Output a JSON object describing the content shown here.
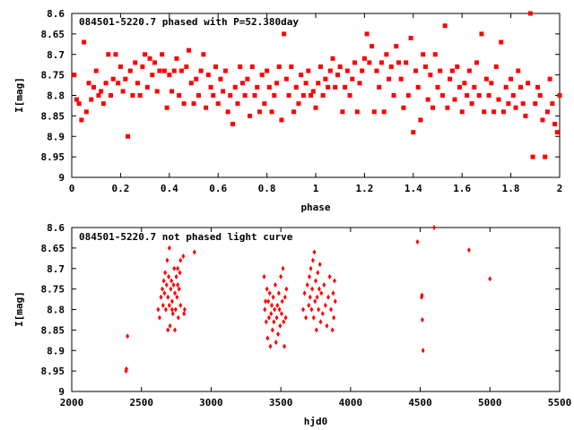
{
  "chart_data": [
    {
      "type": "scatter",
      "title": "084501-5220.7 phased with P=52.380day",
      "xlabel": "phase",
      "ylabel": "I[mag]",
      "xlim": [
        0,
        2
      ],
      "ylim": [
        8.6,
        9
      ],
      "y_inverted": true,
      "xticks": [
        0,
        0.2,
        0.4,
        0.6,
        0.8,
        1,
        1.2,
        1.4,
        1.6,
        1.8,
        2
      ],
      "xtick_labels": [
        "0",
        "0.2",
        "0.4",
        "0.6",
        "0.8",
        "1",
        "1.2",
        "1.4",
        "1.6",
        "1.8",
        "2"
      ],
      "yticks": [
        8.6,
        8.65,
        8.7,
        8.75,
        8.8,
        8.85,
        8.9,
        8.95,
        9
      ],
      "ytick_labels": [
        "8.6",
        "8.65",
        "8.7",
        "8.75",
        "8.8",
        "8.85",
        "8.9",
        "8.95",
        "9"
      ],
      "marker_color": "#ff0000",
      "points": [
        [
          0.01,
          8.75
        ],
        [
          0.02,
          8.81
        ],
        [
          0.03,
          8.82
        ],
        [
          0.04,
          8.86
        ],
        [
          0.05,
          8.67
        ],
        [
          0.06,
          8.84
        ],
        [
          0.07,
          8.77
        ],
        [
          0.08,
          8.81
        ],
        [
          0.09,
          8.78
        ],
        [
          0.1,
          8.74
        ],
        [
          0.11,
          8.8
        ],
        [
          0.12,
          8.79
        ],
        [
          0.13,
          8.82
        ],
        [
          0.14,
          8.77
        ],
        [
          0.15,
          8.7
        ],
        [
          0.16,
          8.8
        ],
        [
          0.17,
          8.76
        ],
        [
          0.18,
          8.7
        ],
        [
          0.19,
          8.77
        ],
        [
          0.2,
          8.73
        ],
        [
          0.21,
          8.79
        ],
        [
          0.22,
          8.76
        ],
        [
          0.23,
          8.9
        ],
        [
          0.24,
          8.74
        ],
        [
          0.25,
          8.8
        ],
        [
          0.26,
          8.72
        ],
        [
          0.27,
          8.77
        ],
        [
          0.28,
          8.8
        ],
        [
          0.29,
          8.73
        ],
        [
          0.3,
          8.7
        ],
        [
          0.31,
          8.78
        ],
        [
          0.32,
          8.71
        ],
        [
          0.33,
          8.75
        ],
        [
          0.34,
          8.72
        ],
        [
          0.35,
          8.79
        ],
        [
          0.36,
          8.74
        ],
        [
          0.37,
          8.7
        ],
        [
          0.38,
          8.74
        ],
        [
          0.39,
          8.83
        ],
        [
          0.4,
          8.75
        ],
        [
          0.41,
          8.79
        ],
        [
          0.42,
          8.74
        ],
        [
          0.43,
          8.71
        ],
        [
          0.44,
          8.8
        ],
        [
          0.45,
          8.74
        ],
        [
          0.46,
          8.82
        ],
        [
          0.47,
          8.73
        ],
        [
          0.48,
          8.69
        ],
        [
          0.49,
          8.77
        ],
        [
          0.5,
          8.82
        ],
        [
          0.51,
          8.76
        ],
        [
          0.52,
          8.8
        ],
        [
          0.53,
          8.74
        ],
        [
          0.54,
          8.7
        ],
        [
          0.55,
          8.83
        ],
        [
          0.56,
          8.75
        ],
        [
          0.57,
          8.78
        ],
        [
          0.58,
          8.8
        ],
        [
          0.59,
          8.73
        ],
        [
          0.6,
          8.82
        ],
        [
          0.61,
          8.76
        ],
        [
          0.62,
          8.79
        ],
        [
          0.63,
          8.74
        ],
        [
          0.64,
          8.84
        ],
        [
          0.65,
          8.8
        ],
        [
          0.66,
          8.87
        ],
        [
          0.67,
          8.78
        ],
        [
          0.68,
          8.82
        ],
        [
          0.69,
          8.73
        ],
        [
          0.7,
          8.77
        ],
        [
          0.71,
          8.8
        ],
        [
          0.72,
          8.76
        ],
        [
          0.73,
          8.85
        ],
        [
          0.74,
          8.73
        ],
        [
          0.75,
          8.8
        ],
        [
          0.76,
          8.78
        ],
        [
          0.77,
          8.84
        ],
        [
          0.78,
          8.75
        ],
        [
          0.79,
          8.82
        ],
        [
          0.8,
          8.74
        ],
        [
          0.81,
          8.78
        ],
        [
          0.82,
          8.84
        ],
        [
          0.83,
          8.8
        ],
        [
          0.84,
          8.77
        ],
        [
          0.85,
          8.73
        ],
        [
          0.86,
          8.86
        ],
        [
          0.87,
          8.65
        ],
        [
          0.88,
          8.76
        ],
        [
          0.89,
          8.8
        ],
        [
          0.9,
          8.73
        ],
        [
          0.91,
          8.84
        ],
        [
          0.92,
          8.78
        ],
        [
          0.93,
          8.82
        ],
        [
          0.94,
          8.75
        ],
        [
          0.95,
          8.8
        ],
        [
          0.96,
          8.77
        ],
        [
          0.97,
          8.74
        ],
        [
          0.98,
          8.8
        ],
        [
          0.99,
          8.79
        ],
        [
          1.0,
          8.83
        ],
        [
          1.01,
          8.77
        ],
        [
          1.02,
          8.73
        ],
        [
          1.03,
          8.8
        ],
        [
          1.04,
          8.76
        ],
        [
          1.05,
          8.78
        ],
        [
          1.06,
          8.74
        ],
        [
          1.07,
          8.71
        ],
        [
          1.08,
          8.78
        ],
        [
          1.09,
          8.75
        ],
        [
          1.1,
          8.73
        ],
        [
          1.11,
          8.84
        ],
        [
          1.12,
          8.78
        ],
        [
          1.13,
          8.74
        ],
        [
          1.14,
          8.8
        ],
        [
          1.15,
          8.76
        ],
        [
          1.16,
          8.72
        ],
        [
          1.17,
          8.84
        ],
        [
          1.18,
          8.77
        ],
        [
          1.19,
          8.74
        ],
        [
          1.2,
          8.71
        ],
        [
          1.21,
          8.65
        ],
        [
          1.22,
          8.72
        ],
        [
          1.23,
          8.68
        ],
        [
          1.24,
          8.84
        ],
        [
          1.25,
          8.74
        ],
        [
          1.26,
          8.78
        ],
        [
          1.27,
          8.72
        ],
        [
          1.28,
          8.84
        ],
        [
          1.29,
          8.7
        ],
        [
          1.3,
          8.76
        ],
        [
          1.31,
          8.73
        ],
        [
          1.32,
          8.8
        ],
        [
          1.33,
          8.68
        ],
        [
          1.34,
          8.72
        ],
        [
          1.35,
          8.76
        ],
        [
          1.36,
          8.83
        ],
        [
          1.37,
          8.72
        ],
        [
          1.38,
          8.8
        ],
        [
          1.39,
          8.66
        ],
        [
          1.4,
          8.89
        ],
        [
          1.41,
          8.74
        ],
        [
          1.42,
          8.78
        ],
        [
          1.43,
          8.86
        ],
        [
          1.44,
          8.7
        ],
        [
          1.45,
          8.73
        ],
        [
          1.46,
          8.81
        ],
        [
          1.47,
          8.75
        ],
        [
          1.48,
          8.83
        ],
        [
          1.49,
          8.7
        ],
        [
          1.5,
          8.78
        ],
        [
          1.51,
          8.74
        ],
        [
          1.52,
          8.8
        ],
        [
          1.53,
          8.63
        ],
        [
          1.54,
          8.83
        ],
        [
          1.55,
          8.76
        ],
        [
          1.56,
          8.74
        ],
        [
          1.57,
          8.81
        ],
        [
          1.58,
          8.73
        ],
        [
          1.59,
          8.78
        ],
        [
          1.6,
          8.84
        ],
        [
          1.61,
          8.77
        ],
        [
          1.62,
          8.8
        ],
        [
          1.63,
          8.74
        ],
        [
          1.64,
          8.82
        ],
        [
          1.65,
          8.78
        ],
        [
          1.66,
          8.72
        ],
        [
          1.67,
          8.8
        ],
        [
          1.68,
          8.65
        ],
        [
          1.69,
          8.84
        ],
        [
          1.7,
          8.76
        ],
        [
          1.71,
          8.8
        ],
        [
          1.72,
          8.77
        ],
        [
          1.73,
          8.84
        ],
        [
          1.74,
          8.73
        ],
        [
          1.75,
          8.81
        ],
        [
          1.76,
          8.67
        ],
        [
          1.77,
          8.84
        ],
        [
          1.78,
          8.78
        ],
        [
          1.79,
          8.82
        ],
        [
          1.8,
          8.76
        ],
        [
          1.81,
          8.8
        ],
        [
          1.82,
          8.83
        ],
        [
          1.83,
          8.74
        ],
        [
          1.84,
          8.78
        ],
        [
          1.85,
          8.82
        ],
        [
          1.86,
          8.85
        ],
        [
          1.87,
          8.77
        ],
        [
          1.88,
          8.6
        ],
        [
          1.89,
          8.95
        ],
        [
          1.9,
          8.82
        ],
        [
          1.91,
          8.78
        ],
        [
          1.92,
          8.8
        ],
        [
          1.93,
          8.86
        ],
        [
          1.94,
          8.95
        ],
        [
          1.95,
          8.84
        ],
        [
          1.96,
          8.76
        ],
        [
          1.97,
          8.82
        ],
        [
          1.98,
          8.87
        ],
        [
          1.99,
          8.89
        ],
        [
          2.0,
          8.8
        ]
      ]
    },
    {
      "type": "scatter",
      "title": "084501-5220.7 not phased light curve",
      "xlabel": "hjd0",
      "ylabel": "I[mag]",
      "xlim": [
        2000,
        5500
      ],
      "ylim": [
        8.6,
        9
      ],
      "y_inverted": true,
      "xticks": [
        2000,
        2500,
        3000,
        3500,
        4000,
        4500,
        5000,
        5500
      ],
      "xtick_labels": [
        "2000",
        "2500",
        "3000",
        "3500",
        "4000",
        "4500",
        "5000",
        "5500"
      ],
      "yticks": [
        8.6,
        8.65,
        8.7,
        8.75,
        8.8,
        8.85,
        8.9,
        8.95,
        9
      ],
      "ytick_labels": [
        "8.6",
        "8.65",
        "8.7",
        "8.75",
        "8.8",
        "8.85",
        "8.9",
        "8.95",
        "9"
      ],
      "marker_color": "#ff0000",
      "points": [
        [
          2390,
          8.95
        ],
        [
          2392,
          8.945
        ],
        [
          2400,
          8.865
        ],
        [
          2620,
          8.8
        ],
        [
          2630,
          8.82
        ],
        [
          2640,
          8.77
        ],
        [
          2650,
          8.75
        ],
        [
          2655,
          8.79
        ],
        [
          2660,
          8.73
        ],
        [
          2665,
          8.76
        ],
        [
          2670,
          8.71
        ],
        [
          2675,
          8.8
        ],
        [
          2680,
          8.74
        ],
        [
          2685,
          8.68
        ],
        [
          2690,
          8.77
        ],
        [
          2695,
          8.72
        ],
        [
          2700,
          8.79
        ],
        [
          2705,
          8.84
        ],
        [
          2710,
          8.75
        ],
        [
          2715,
          8.73
        ],
        [
          2720,
          8.78
        ],
        [
          2725,
          8.81
        ],
        [
          2730,
          8.74
        ],
        [
          2735,
          8.7
        ],
        [
          2740,
          8.76
        ],
        [
          2745,
          8.8
        ],
        [
          2750,
          8.72
        ],
        [
          2755,
          8.77
        ],
        [
          2760,
          8.74
        ],
        [
          2765,
          8.82
        ],
        [
          2770,
          8.75
        ],
        [
          2775,
          8.71
        ],
        [
          2780,
          8.79
        ],
        [
          2690,
          8.85
        ],
        [
          2700,
          8.65
        ],
        [
          2720,
          8.8
        ],
        [
          2740,
          8.85
        ],
        [
          2760,
          8.7
        ],
        [
          2780,
          8.68
        ],
        [
          2800,
          8.67
        ],
        [
          2805,
          8.81
        ],
        [
          2810,
          8.8
        ],
        [
          2880,
          8.66
        ],
        [
          3380,
          8.72
        ],
        [
          3385,
          8.8
        ],
        [
          3390,
          8.78
        ],
        [
          3395,
          8.83
        ],
        [
          3400,
          8.75
        ],
        [
          3405,
          8.87
        ],
        [
          3410,
          8.78
        ],
        [
          3415,
          8.82
        ],
        [
          3420,
          8.76
        ],
        [
          3425,
          8.89
        ],
        [
          3430,
          8.81
        ],
        [
          3435,
          8.79
        ],
        [
          3440,
          8.85
        ],
        [
          3445,
          8.77
        ],
        [
          3450,
          8.83
        ],
        [
          3455,
          8.8
        ],
        [
          3460,
          8.74
        ],
        [
          3465,
          8.88
        ],
        [
          3470,
          8.82
        ],
        [
          3475,
          8.79
        ],
        [
          3480,
          8.86
        ],
        [
          3485,
          8.76
        ],
        [
          3490,
          8.8
        ],
        [
          3495,
          8.84
        ],
        [
          3500,
          8.72
        ],
        [
          3505,
          8.81
        ],
        [
          3510,
          8.78
        ],
        [
          3515,
          8.7
        ],
        [
          3520,
          8.83
        ],
        [
          3525,
          8.89
        ],
        [
          3530,
          8.77
        ],
        [
          3535,
          8.82
        ],
        [
          3540,
          8.75
        ],
        [
          3660,
          8.8
        ],
        [
          3670,
          8.76
        ],
        [
          3680,
          8.82
        ],
        [
          3690,
          8.74
        ],
        [
          3700,
          8.79
        ],
        [
          3705,
          8.72
        ],
        [
          3710,
          8.77
        ],
        [
          3715,
          8.7
        ],
        [
          3720,
          8.8
        ],
        [
          3725,
          8.75
        ],
        [
          3730,
          8.68
        ],
        [
          3735,
          8.82
        ],
        [
          3740,
          8.66
        ],
        [
          3745,
          8.78
        ],
        [
          3750,
          8.73
        ],
        [
          3755,
          8.85
        ],
        [
          3760,
          8.77
        ],
        [
          3765,
          8.71
        ],
        [
          3770,
          8.8
        ],
        [
          3775,
          8.75
        ],
        [
          3780,
          8.69
        ],
        [
          3785,
          8.83
        ],
        [
          3790,
          8.76
        ],
        [
          3800,
          8.81
        ],
        [
          3810,
          8.74
        ],
        [
          3820,
          8.79
        ],
        [
          3830,
          8.84
        ],
        [
          3840,
          8.77
        ],
        [
          3850,
          8.72
        ],
        [
          3860,
          8.8
        ],
        [
          3870,
          8.85
        ],
        [
          3875,
          8.76
        ],
        [
          3880,
          8.82
        ],
        [
          3885,
          8.73
        ],
        [
          3890,
          8.78
        ],
        [
          4480,
          8.635
        ],
        [
          4510,
          8.77
        ],
        [
          4512,
          8.765
        ],
        [
          4515,
          8.825
        ],
        [
          4520,
          8.9
        ],
        [
          4600,
          8.6
        ],
        [
          4850,
          8.655
        ],
        [
          5000,
          8.725
        ]
      ]
    }
  ]
}
